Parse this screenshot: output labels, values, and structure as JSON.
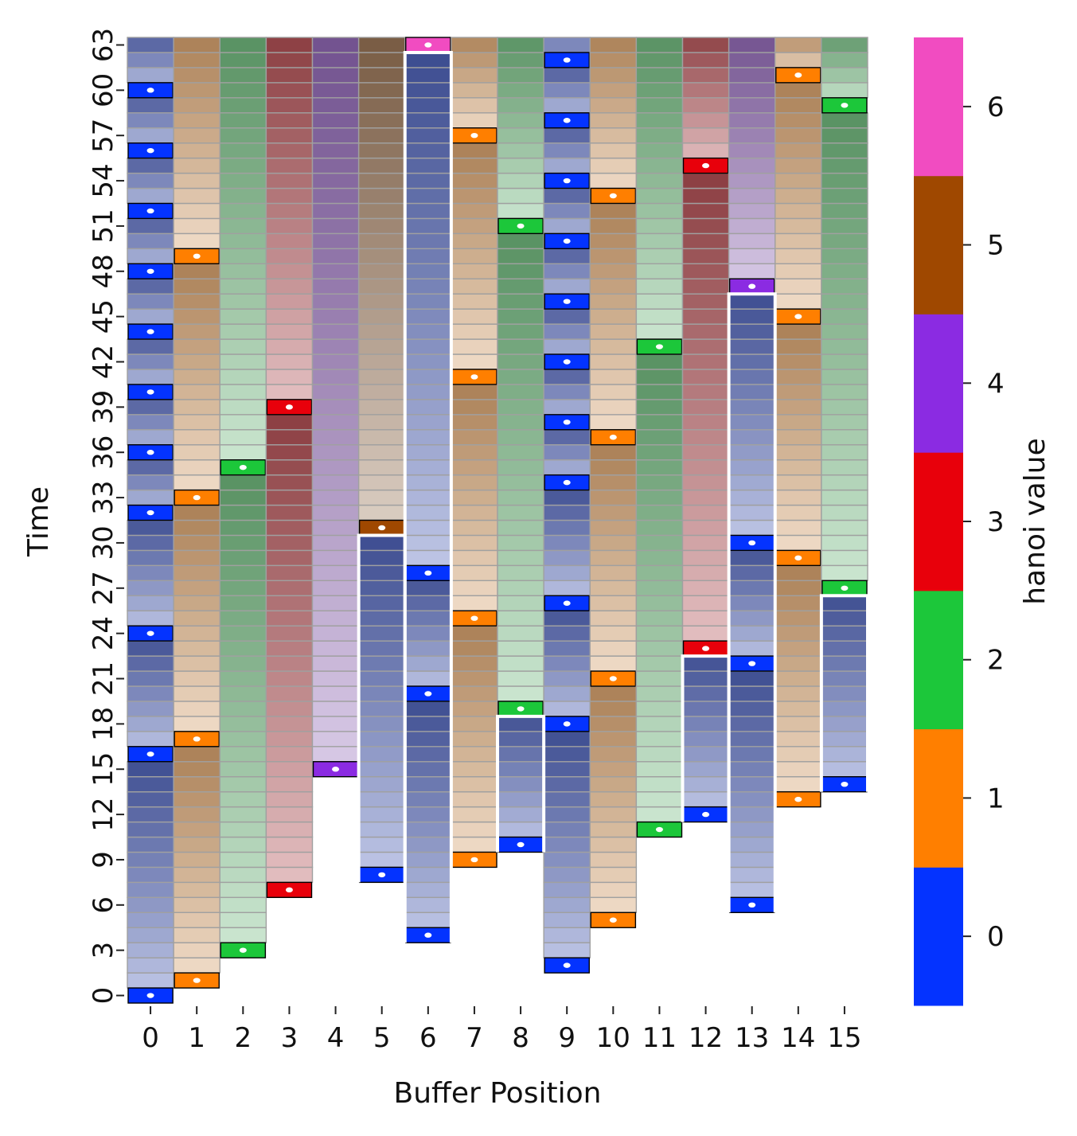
{
  "chart_data": {
    "type": "heatmap",
    "title": "",
    "xlabel": "Buffer Position",
    "ylabel": "Time",
    "x_ticks": [
      "0",
      "1",
      "2",
      "3",
      "4",
      "5",
      "6",
      "7",
      "8",
      "9",
      "10",
      "11",
      "12",
      "13",
      "14",
      "15"
    ],
    "y_ticks": [
      "0",
      "3",
      "6",
      "9",
      "12",
      "15",
      "18",
      "21",
      "24",
      "27",
      "30",
      "33",
      "36",
      "39",
      "42",
      "45",
      "48",
      "51",
      "54",
      "57",
      "60",
      "63"
    ],
    "time_range": [
      0,
      63
    ],
    "grid": false,
    "colorbar": {
      "label": "hanoi value",
      "ticks": [
        "0",
        "1",
        "2",
        "3",
        "4",
        "5",
        "6"
      ],
      "colors": [
        "#0433ff",
        "#ff7f00",
        "#1cc73a",
        "#e8000b",
        "#8b2be2",
        "#9f4800",
        "#f14cc1"
      ]
    },
    "columns": [
      {
        "position": 0,
        "start_time": 0,
        "value": 0,
        "write_times": [
          0,
          16,
          24,
          32,
          36,
          40,
          44,
          48,
          52,
          56,
          60
        ]
      },
      {
        "position": 1,
        "start_time": 1,
        "value": 1,
        "write_times": [
          1,
          17,
          33,
          49
        ]
      },
      {
        "position": 2,
        "start_time": 3,
        "value": 2,
        "write_times": [
          3,
          35
        ]
      },
      {
        "position": 3,
        "start_time": 7,
        "value": 3,
        "write_times": [
          7,
          39
        ]
      },
      {
        "position": 4,
        "start_time": 15,
        "value": 4,
        "write_times": [
          15
        ]
      },
      {
        "position": 5,
        "start_time": 31,
        "value": 5,
        "write_times": [
          31
        ],
        "prior_segment": {
          "start_time": 8,
          "value": 0,
          "write_times": [
            8
          ]
        }
      },
      {
        "position": 6,
        "start_time": 63,
        "value": 6,
        "write_times": [
          63
        ],
        "prior_segment": {
          "start_time": 4,
          "value": 0,
          "write_times": [
            4,
            20,
            28
          ]
        }
      },
      {
        "position": 7,
        "start_time": 9,
        "value": 1,
        "write_times": [
          9,
          25,
          41,
          57
        ]
      },
      {
        "position": 8,
        "start_time": 19,
        "value": 2,
        "write_times": [
          19,
          51
        ],
        "prior_segment": {
          "start_time": 10,
          "value": 0,
          "write_times": [
            10
          ]
        }
      },
      {
        "position": 9,
        "start_time": 2,
        "value": 0,
        "write_times": [
          2,
          18,
          26,
          34,
          38,
          42,
          46,
          50,
          54,
          58,
          62
        ]
      },
      {
        "position": 10,
        "start_time": 5,
        "value": 1,
        "write_times": [
          5,
          21,
          37,
          53
        ]
      },
      {
        "position": 11,
        "start_time": 11,
        "value": 2,
        "write_times": [
          11,
          43
        ]
      },
      {
        "position": 12,
        "start_time": 23,
        "value": 3,
        "write_times": [
          23,
          55
        ],
        "prior_segment": {
          "start_time": 12,
          "value": 0,
          "write_times": [
            12
          ]
        }
      },
      {
        "position": 13,
        "start_time": 47,
        "value": 4,
        "write_times": [
          47
        ],
        "prior_segment": {
          "start_time": 6,
          "value": 0,
          "write_times": [
            6,
            22,
            30
          ]
        }
      },
      {
        "position": 14,
        "start_time": 13,
        "value": 1,
        "write_times": [
          13,
          29,
          45,
          61
        ]
      },
      {
        "position": 15,
        "start_time": 27,
        "value": 2,
        "write_times": [
          27,
          59
        ],
        "prior_segment": {
          "start_time": 14,
          "value": 0,
          "write_times": [
            14
          ]
        }
      }
    ]
  }
}
